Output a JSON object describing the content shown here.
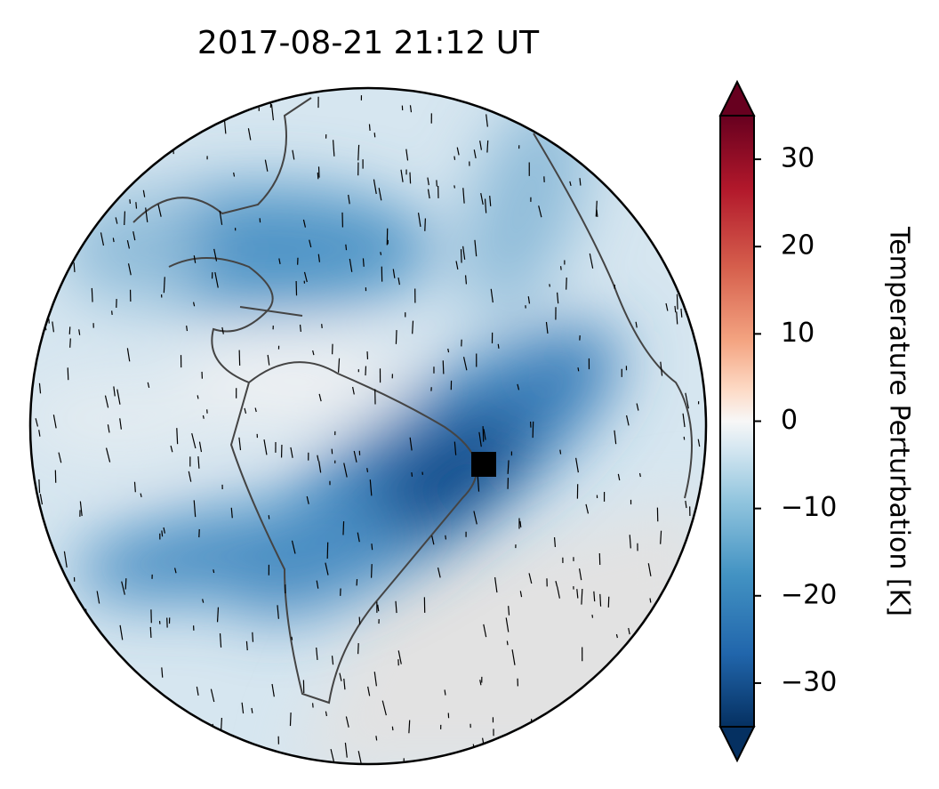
{
  "chart_data": {
    "type": "map",
    "title": "2017-08-21  21:12 UT",
    "colorbar": {
      "label": "Temperature Perturbation [K]",
      "lim": [
        -35,
        35
      ],
      "ticks": [
        30,
        20,
        10,
        0,
        {
          "value": -10,
          "label": "−10"
        },
        {
          "value": -20,
          "label": "−20"
        },
        {
          "value": -30,
          "label": "−30"
        }
      ]
    }
  }
}
